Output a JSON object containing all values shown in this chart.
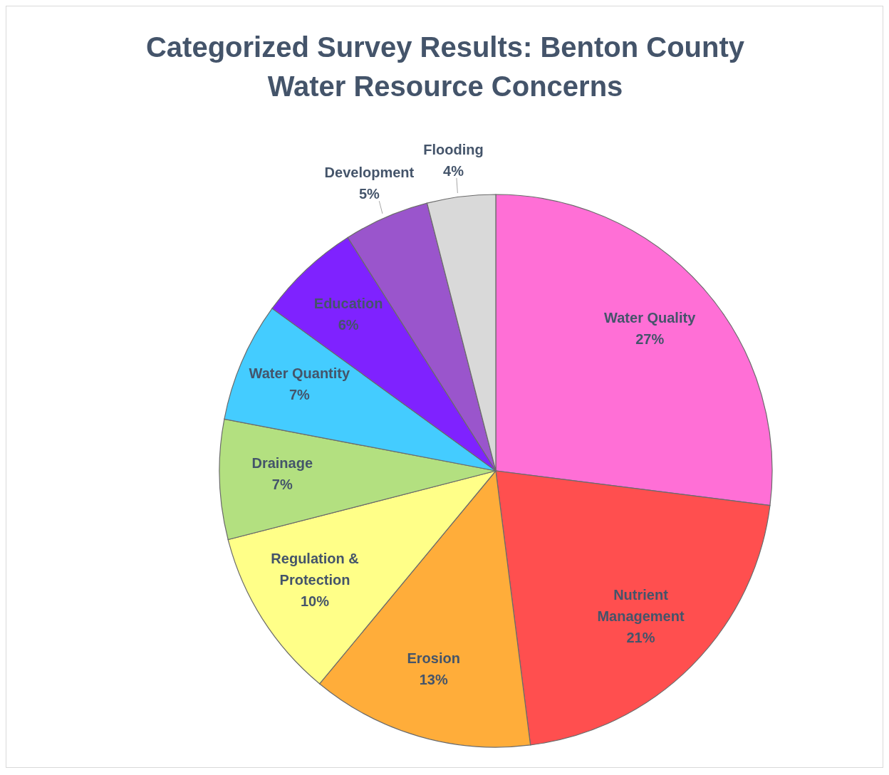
{
  "chart_data": {
    "type": "pie",
    "title": "Categorized Survey Results: Benton County Water Resource Concerns",
    "categories": [
      "Water Quality",
      "Nutrient Management",
      "Erosion",
      "Regulation & Protection",
      "Drainage",
      "Water Quantity",
      "Education",
      "Development",
      "Flooding"
    ],
    "values": [
      27,
      21,
      13,
      10,
      7,
      7,
      6,
      5,
      4
    ],
    "value_labels": [
      "27%",
      "21%",
      "13%",
      "10%",
      "7%",
      "7%",
      "6%",
      "5%",
      "4%"
    ],
    "colors": [
      "#ff6fd6",
      "#ff4f4f",
      "#ffad3a",
      "#ffff88",
      "#b3e080",
      "#44ccff",
      "#7f22ff",
      "#9a55cc",
      "#d9d9d9"
    ],
    "legend": false
  }
}
